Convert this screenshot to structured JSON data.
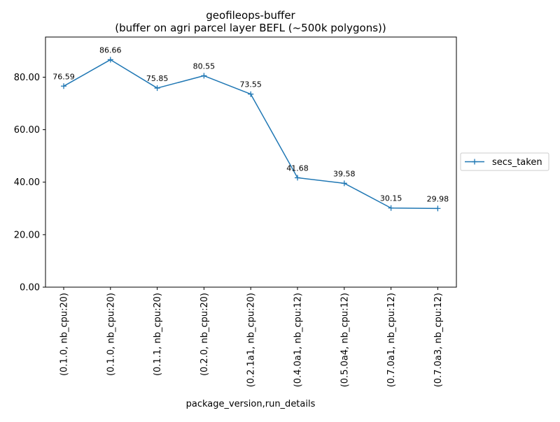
{
  "chart_data": {
    "type": "line",
    "title": "geofileops-buffer",
    "subtitle": "(buffer on agri parcel layer BEFL (~500k polygons))",
    "xlabel": "package_version,run_details",
    "ylabel": "",
    "categories": [
      "(0.1.0, nb_cpu:20)",
      "(0.1.0, nb_cpu:20)",
      "(0.1.1, nb_cpu:20)",
      "(0.2.0, nb_cpu:20)",
      "(0.2.1a1, nb_cpu:20)",
      "(0.4.0a1, nb_cpu:12)",
      "(0.5.0a4, nb_cpu:12)",
      "(0.7.0a1, nb_cpu:12)",
      "(0.7.0a3, nb_cpu:12)"
    ],
    "series": [
      {
        "name": "secs_taken",
        "values": [
          76.59,
          86.66,
          75.85,
          80.55,
          73.55,
          41.68,
          39.58,
          30.15,
          29.98
        ],
        "color": "#1f77b4",
        "marker": "+"
      }
    ],
    "data_labels": [
      "76.59",
      "86.66",
      "75.85",
      "80.55",
      "73.55",
      "41.68",
      "39.58",
      "30.15",
      "29.98"
    ],
    "y_ticks": [
      0,
      20,
      40,
      60,
      80
    ],
    "y_tick_labels": [
      "0.00",
      "20.00",
      "40.00",
      "60.00",
      "80.00"
    ],
    "ylim": [
      0,
      95.3
    ],
    "grid": false,
    "legend_position": "right-center"
  }
}
